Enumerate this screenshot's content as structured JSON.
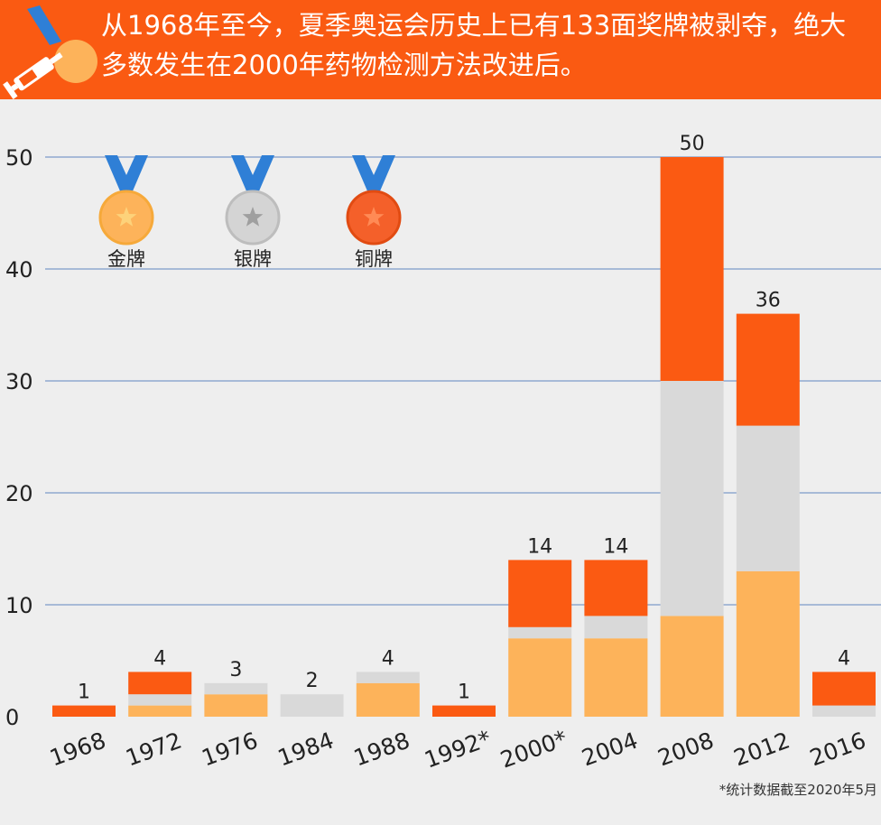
{
  "header": {
    "line1": "从1968年至今，夏季奥运会历史上已有133面奖牌被剥夺，绝大",
    "line2": "多数发生在2000年药物检测方法改进后。",
    "icon": "medal-syringe-icon"
  },
  "footnote": "*统计数据截至2020年5月",
  "colors": {
    "header_bg": "#fa5a12",
    "background": "#eeeeee",
    "gold": "#fdb35a",
    "silver": "#d9d9d9",
    "bronze": "#fb5a12",
    "gridline": "#8fa8cf",
    "ribbon": "#2f7fd6"
  },
  "chart_data": {
    "type": "bar",
    "stacked": true,
    "categories": [
      "1968",
      "1972",
      "1976",
      "1984",
      "1988",
      "1992*",
      "2000*",
      "2004",
      "2008",
      "2012",
      "2016"
    ],
    "series": [
      {
        "name": "金牌",
        "values": [
          0,
          1,
          2,
          0,
          3,
          0,
          7,
          7,
          9,
          13,
          0
        ]
      },
      {
        "name": "银牌",
        "values": [
          0,
          1,
          1,
          2,
          1,
          0,
          1,
          2,
          21,
          13,
          1
        ]
      },
      {
        "name": "铜牌",
        "values": [
          1,
          2,
          0,
          0,
          0,
          1,
          6,
          5,
          20,
          10,
          3
        ]
      }
    ],
    "totals": [
      1,
      4,
      3,
      2,
      4,
      1,
      14,
      14,
      50,
      36,
      4
    ],
    "ylim": [
      0,
      50
    ],
    "yticks": [
      0,
      10,
      20,
      30,
      40,
      50
    ],
    "grid": true,
    "legend_position": "top-left",
    "title": "",
    "xlabel": "",
    "ylabel": ""
  }
}
